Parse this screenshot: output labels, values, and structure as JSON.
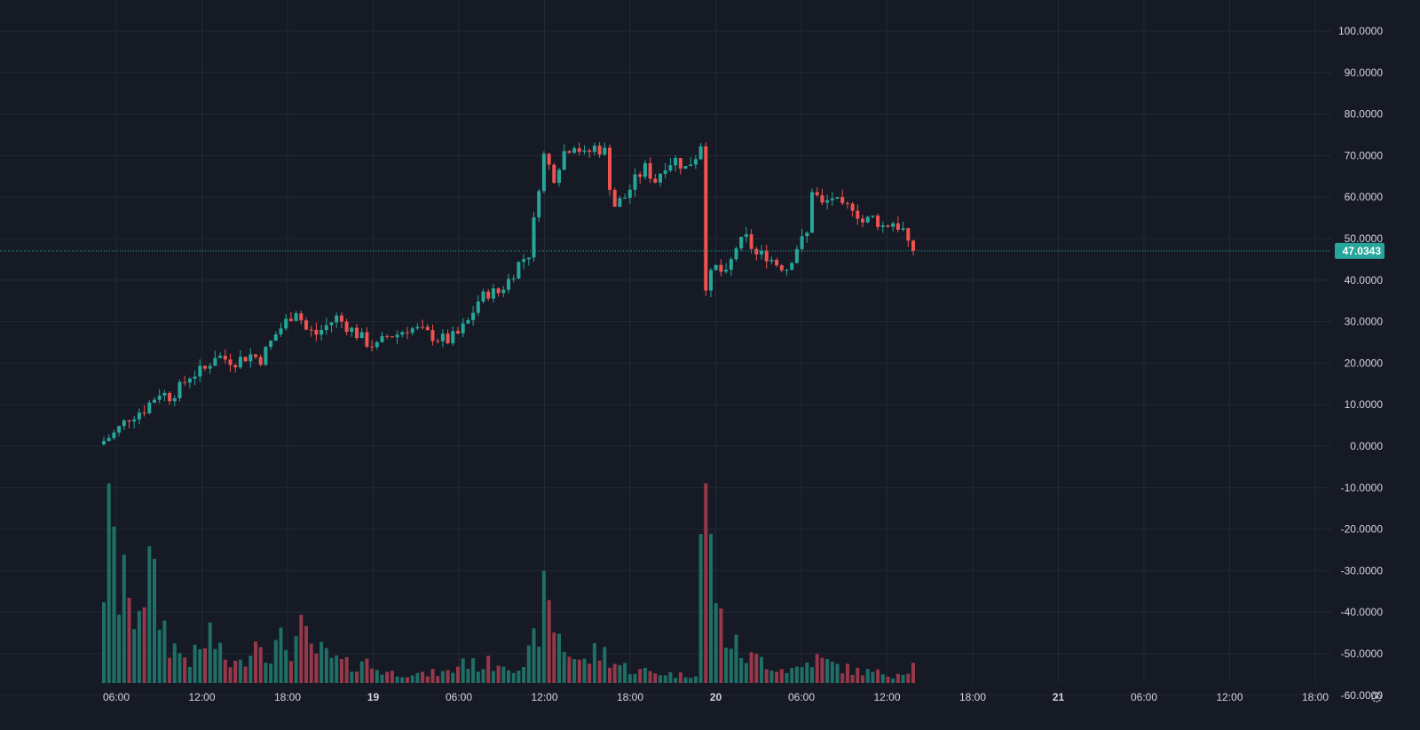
{
  "chart_data": {
    "type": "candlestick",
    "price_axis": {
      "ticks": [
        "100.0000",
        "90.0000",
        "80.0000",
        "70.0000",
        "60.0000",
        "50.0000",
        "40.0000",
        "30.0000",
        "20.0000",
        "10.0000",
        "0.0000",
        "-10.0000",
        "-20.0000",
        "-30.0000",
        "-40.0000",
        "-50.0000",
        "-60.0000"
      ],
      "range": [
        -60,
        100
      ]
    },
    "time_axis": {
      "ticks": [
        {
          "label": "06:00",
          "day": false
        },
        {
          "label": "12:00",
          "day": false
        },
        {
          "label": "18:00",
          "day": false
        },
        {
          "label": "19",
          "day": true
        },
        {
          "label": "06:00",
          "day": false
        },
        {
          "label": "12:00",
          "day": false
        },
        {
          "label": "18:00",
          "day": false
        },
        {
          "label": "20",
          "day": true
        },
        {
          "label": "06:00",
          "day": false
        },
        {
          "label": "12:00",
          "day": false
        },
        {
          "label": "18:00",
          "day": false
        },
        {
          "label": "21",
          "day": true
        },
        {
          "label": "06:00",
          "day": false
        },
        {
          "label": "12:00",
          "day": false
        },
        {
          "label": "18:00",
          "day": false
        }
      ]
    },
    "last_price": "47.0343",
    "grid": true,
    "price_path": [
      [
        0,
        0.4
      ],
      [
        3,
        3
      ],
      [
        6,
        7
      ],
      [
        9,
        9
      ],
      [
        12,
        13
      ],
      [
        14,
        12
      ],
      [
        16,
        14
      ],
      [
        18,
        17
      ],
      [
        21,
        18.5
      ],
      [
        23,
        22
      ],
      [
        25,
        21
      ],
      [
        27,
        20.5
      ],
      [
        30,
        22
      ],
      [
        32,
        21
      ],
      [
        35,
        27
      ],
      [
        37,
        30
      ],
      [
        39,
        33
      ],
      [
        41,
        28
      ],
      [
        43,
        27
      ],
      [
        45,
        29
      ],
      [
        47,
        31
      ],
      [
        49,
        29
      ],
      [
        51,
        27
      ],
      [
        53,
        25
      ],
      [
        55,
        24
      ],
      [
        57,
        26.5
      ],
      [
        59,
        27
      ],
      [
        61,
        28.5
      ],
      [
        63,
        28
      ],
      [
        65,
        27
      ],
      [
        67,
        26
      ],
      [
        69,
        25.5
      ],
      [
        71,
        27
      ],
      [
        73,
        30
      ],
      [
        75,
        35
      ],
      [
        77,
        37
      ],
      [
        79,
        37
      ],
      [
        81,
        40
      ],
      [
        83,
        44
      ],
      [
        85,
        46.5
      ],
      [
        86,
        54
      ],
      [
        87,
        63
      ],
      [
        88,
        70
      ],
      [
        90,
        65
      ],
      [
        92,
        71
      ],
      [
        94,
        73
      ],
      [
        96,
        70
      ],
      [
        98,
        72
      ],
      [
        100,
        71
      ],
      [
        101,
        63
      ],
      [
        102,
        58
      ],
      [
        104,
        60
      ],
      [
        106,
        64
      ],
      [
        108,
        67
      ],
      [
        110,
        64
      ],
      [
        112,
        68
      ],
      [
        114,
        69
      ],
      [
        116,
        67
      ],
      [
        118,
        70
      ],
      [
        119,
        73
      ],
      [
        120,
        39
      ],
      [
        122,
        43
      ],
      [
        124,
        41
      ],
      [
        126,
        48
      ],
      [
        128,
        50
      ],
      [
        130,
        46
      ],
      [
        132,
        46
      ],
      [
        134,
        44
      ],
      [
        136,
        43
      ],
      [
        138,
        48
      ],
      [
        140,
        51
      ],
      [
        141,
        62
      ],
      [
        143,
        58
      ],
      [
        145,
        60
      ],
      [
        147,
        57
      ],
      [
        149,
        58
      ],
      [
        151,
        54
      ],
      [
        153,
        55
      ],
      [
        155,
        53
      ],
      [
        157,
        54
      ],
      [
        159,
        52
      ],
      [
        160,
        48
      ],
      [
        161,
        46.5
      ]
    ],
    "volume_path": [
      [
        0,
        0.25
      ],
      [
        2,
        0.8
      ],
      [
        4,
        0.45
      ],
      [
        5,
        0.65
      ],
      [
        6,
        0.3
      ],
      [
        8,
        0.45
      ],
      [
        10,
        0.55
      ],
      [
        12,
        0.35
      ],
      [
        14,
        0.2
      ],
      [
        16,
        0.15
      ],
      [
        18,
        0.12
      ],
      [
        20,
        0.15
      ],
      [
        22,
        0.25
      ],
      [
        24,
        0.14
      ],
      [
        26,
        0.1
      ],
      [
        28,
        0.09
      ],
      [
        30,
        0.2
      ],
      [
        32,
        0.22
      ],
      [
        34,
        0.15
      ],
      [
        36,
        0.2
      ],
      [
        38,
        0.18
      ],
      [
        40,
        0.25
      ],
      [
        42,
        0.17
      ],
      [
        44,
        0.15
      ],
      [
        46,
        0.12
      ],
      [
        48,
        0.1
      ],
      [
        50,
        0.08
      ],
      [
        52,
        0.12
      ],
      [
        54,
        0.08
      ],
      [
        56,
        0.06
      ],
      [
        58,
        0.05
      ],
      [
        60,
        0.05
      ],
      [
        62,
        0.05
      ],
      [
        64,
        0.04
      ],
      [
        66,
        0.05
      ],
      [
        68,
        0.05
      ],
      [
        70,
        0.06
      ],
      [
        72,
        0.12
      ],
      [
        74,
        0.09
      ],
      [
        76,
        0.09
      ],
      [
        78,
        0.1
      ],
      [
        80,
        0.11
      ],
      [
        82,
        0.09
      ],
      [
        84,
        0.06
      ],
      [
        86,
        0.2
      ],
      [
        88,
        0.4
      ],
      [
        90,
        0.3
      ],
      [
        92,
        0.18
      ],
      [
        94,
        0.13
      ],
      [
        96,
        0.1
      ],
      [
        98,
        0.15
      ],
      [
        100,
        0.15
      ],
      [
        102,
        0.1
      ],
      [
        104,
        0.08
      ],
      [
        106,
        0.06
      ],
      [
        108,
        0.06
      ],
      [
        110,
        0.05
      ],
      [
        112,
        0.05
      ],
      [
        114,
        0.04
      ],
      [
        116,
        0.04
      ],
      [
        118,
        0.05
      ],
      [
        119,
        0.75
      ],
      [
        120,
        0.9
      ],
      [
        121,
        0.65
      ],
      [
        123,
        0.3
      ],
      [
        125,
        0.2
      ],
      [
        127,
        0.15
      ],
      [
        129,
        0.12
      ],
      [
        131,
        0.12
      ],
      [
        133,
        0.09
      ],
      [
        135,
        0.07
      ],
      [
        137,
        0.07
      ],
      [
        139,
        0.08
      ],
      [
        141,
        0.12
      ],
      [
        143,
        0.11
      ],
      [
        145,
        0.09
      ],
      [
        147,
        0.08
      ],
      [
        149,
        0.06
      ],
      [
        151,
        0.06
      ],
      [
        153,
        0.05
      ],
      [
        155,
        0.05
      ],
      [
        157,
        0.04
      ],
      [
        159,
        0.06
      ],
      [
        161,
        0.09
      ]
    ],
    "colors": {
      "background": "#161a25",
      "grid": "#242833",
      "up": "#26a69a",
      "down": "#ef5350",
      "volume_up": "#1f6f66",
      "volume_down": "#97384a",
      "axis_text": "#d1d4dc",
      "price_tag": "#26a69a"
    },
    "settings_icon": "gear-icon"
  }
}
